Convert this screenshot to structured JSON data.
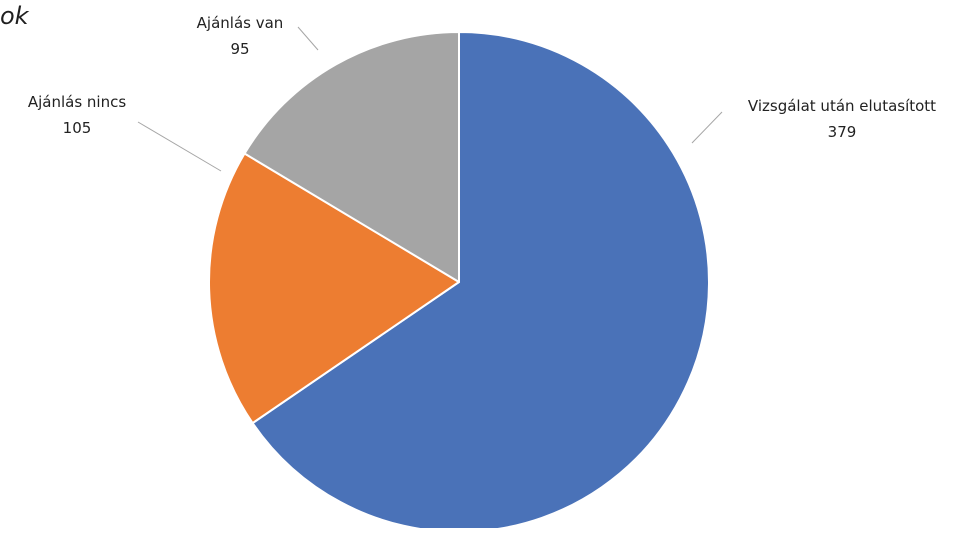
{
  "chart_data": {
    "type": "pie",
    "title": "ok",
    "slices": [
      {
        "label": "Vizsgálat után elutasított",
        "value": 379,
        "color": "#4a72b8"
      },
      {
        "label": "Ajánlás nincs",
        "value": 105,
        "color": "#ed7d31"
      },
      {
        "label": "Ajánlás van",
        "value": 95,
        "color": "#a5a5a5"
      }
    ],
    "legend": "none",
    "data_labels": "outside-with-leader-lines"
  }
}
